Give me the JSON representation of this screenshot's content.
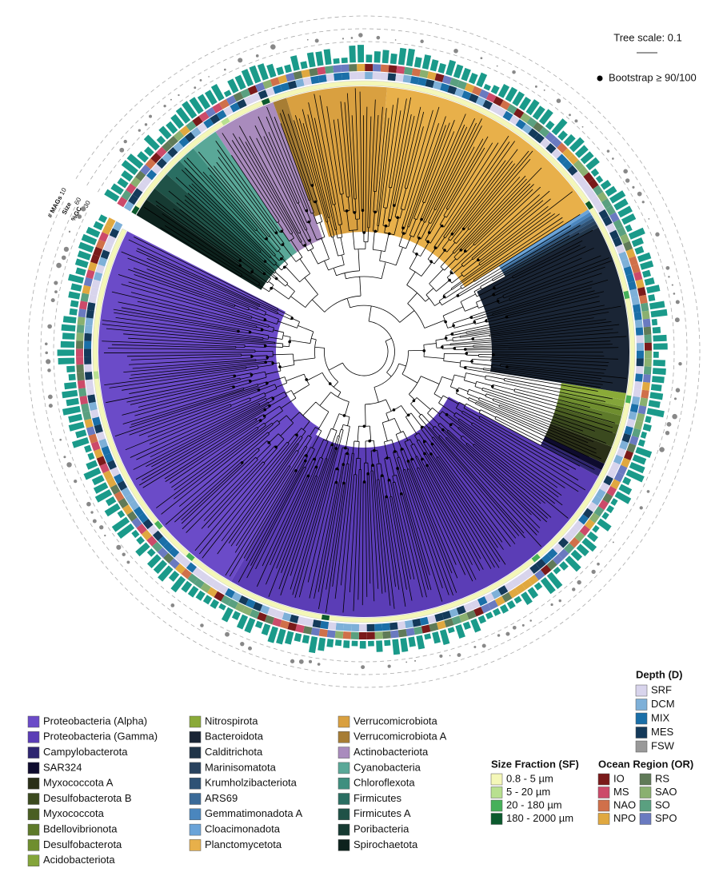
{
  "header": {
    "tree_scale": "Tree scale: 0.1",
    "bootstrap": "Bootstrap ≥ 90/100"
  },
  "ring_labels": [
    "# MAGs",
    "10",
    "Size",
    "60",
    "%GC",
    "30"
  ],
  "phylum_legend": {
    "items": [
      {
        "label": "Proteobacteria (Alpha)",
        "color": "#6b4bc8"
      },
      {
        "label": "Proteobacteria (Gamma)",
        "color": "#5b3db6"
      },
      {
        "label": "Campylobacterota",
        "color": "#2e2570"
      },
      {
        "label": "SAR324",
        "color": "#0e0b2e"
      },
      {
        "label": "Myxococcota A",
        "color": "#2a2f18"
      },
      {
        "label": "Desulfobacterota B",
        "color": "#3b4a1f"
      },
      {
        "label": "Myxococcota",
        "color": "#4a5e22"
      },
      {
        "label": "Bdellovibrionota",
        "color": "#5e7a2a"
      },
      {
        "label": "Desulfobacterota",
        "color": "#6f8e2f"
      },
      {
        "label": "Acidobacteriota",
        "color": "#84a53a"
      },
      {
        "label": "Nitrospirota",
        "color": "#8aaa38"
      },
      {
        "label": "Bacteroidota",
        "color": "#1a2535"
      },
      {
        "label": "Calditrichota",
        "color": "#213549"
      },
      {
        "label": "Marinisomatota",
        "color": "#28425e"
      },
      {
        "label": "Krumholzibacteriota",
        "color": "#2f5275"
      },
      {
        "label": "ARS69",
        "color": "#3a6a98"
      },
      {
        "label": "Gemmatimonadota A",
        "color": "#4a86be"
      },
      {
        "label": "Cloacimonadota",
        "color": "#6aa3d8"
      },
      {
        "label": "Planctomycetota",
        "color": "#e8b04a"
      },
      {
        "label": "Verrucomicrobiota",
        "color": "#d9a040"
      },
      {
        "label": "Verrucomicrobiota A",
        "color": "#a77d34"
      },
      {
        "label": "Actinobacteriota",
        "color": "#a98bbd"
      },
      {
        "label": "Cyanobacteria",
        "color": "#5aa898"
      },
      {
        "label": "Chloroflexota",
        "color": "#3f8f7f"
      },
      {
        "label": "Firmicutes",
        "color": "#2a6e62"
      },
      {
        "label": "Firmicutes A",
        "color": "#1f5247"
      },
      {
        "label": "Poribacteria",
        "color": "#163a32"
      },
      {
        "label": "Spirochaetota",
        "color": "#0d221d"
      }
    ]
  },
  "depth_legend": {
    "title": "Depth (D)",
    "items": [
      {
        "label": "SRF",
        "color": "#d8d4ec"
      },
      {
        "label": "DCM",
        "color": "#7eb0d8"
      },
      {
        "label": "MIX",
        "color": "#1a6fa8"
      },
      {
        "label": "MES",
        "color": "#143a5a"
      },
      {
        "label": "FSW",
        "color": "#999999"
      }
    ]
  },
  "size_fraction_legend": {
    "title": "Size Fraction (SF)",
    "items": [
      {
        "label": "0.8 - 5 µm",
        "color": "#f4f7b8"
      },
      {
        "label": "5 - 20 µm",
        "color": "#b8e08f"
      },
      {
        "label": "20 - 180 µm",
        "color": "#46b05a"
      },
      {
        "label": "180 - 2000 µm",
        "color": "#0c5a2e"
      }
    ]
  },
  "ocean_region_legend": {
    "title": "Ocean Region (OR)",
    "items": [
      {
        "label": "IO",
        "color": "#7a1a1a"
      },
      {
        "label": "MS",
        "color": "#cc4a6a"
      },
      {
        "label": "NAO",
        "color": "#d0704a"
      },
      {
        "label": "NPO",
        "color": "#e0a840"
      },
      {
        "label": "RS",
        "color": "#607a58"
      },
      {
        "label": "SAO",
        "color": "#8ab070"
      },
      {
        "label": "SO",
        "color": "#5aa080"
      },
      {
        "label": "SPO",
        "color": "#6a7ac0"
      }
    ]
  }
}
